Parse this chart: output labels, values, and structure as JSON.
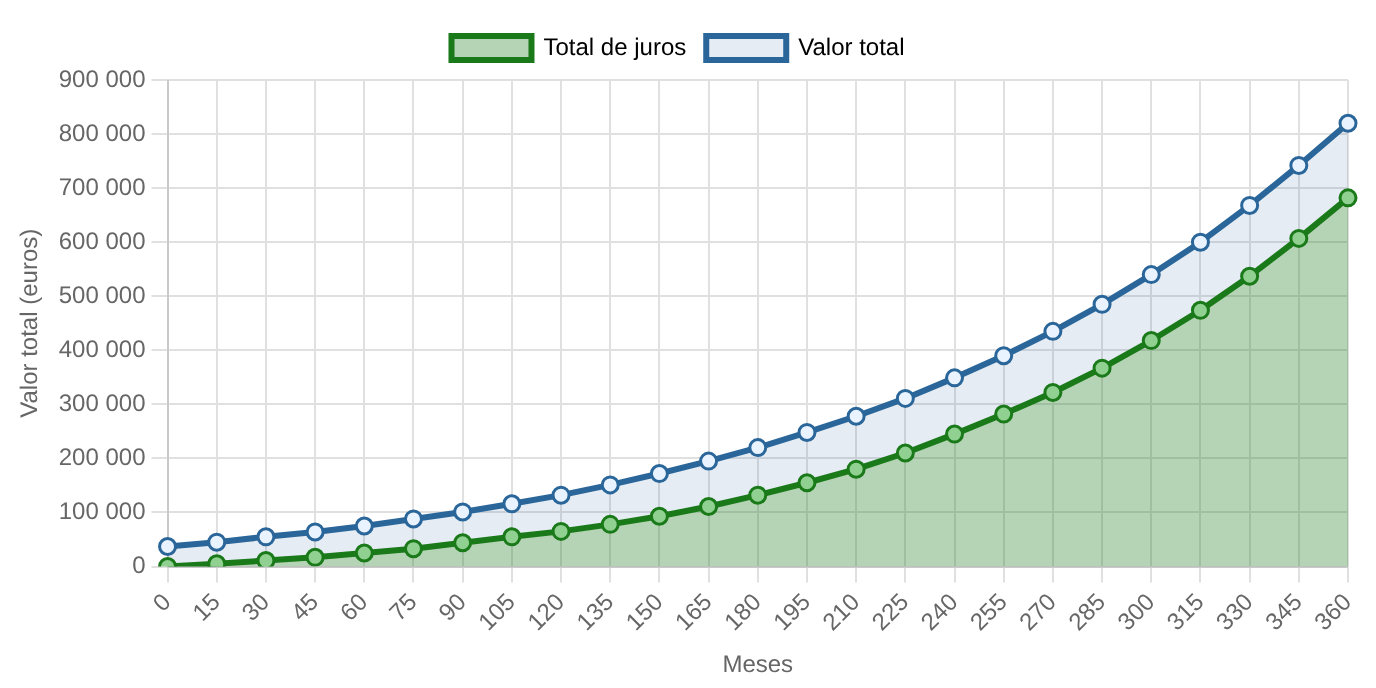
{
  "chart_data": {
    "type": "area",
    "xlabel": "Meses",
    "ylabel": "Valor total (euros)",
    "categories": [
      "0",
      "15",
      "30",
      "45",
      "60",
      "75",
      "90",
      "105",
      "120",
      "135",
      "150",
      "165",
      "180",
      "195",
      "210",
      "225",
      "240",
      "255",
      "270",
      "285",
      "300",
      "315",
      "330",
      "345",
      "360"
    ],
    "series": [
      {
        "name": "Total de juros",
        "color": "#1a7a1a",
        "values": [
          0,
          5000,
          11000,
          17000,
          25000,
          33000,
          44000,
          55000,
          65000,
          78000,
          93000,
          111000,
          132000,
          155000,
          180000,
          210000,
          245000,
          282000,
          322000,
          367000,
          418000,
          474000,
          537000,
          607000,
          682000
        ]
      },
      {
        "name": "Valor total",
        "color": "#2a6699",
        "values": [
          37000,
          45000,
          55000,
          64000,
          75000,
          88000,
          101000,
          116000,
          132000,
          151000,
          172000,
          195000,
          220000,
          248000,
          278000,
          311000,
          349000,
          390000,
          435000,
          485000,
          540000,
          600000,
          668000,
          742000,
          820000
        ]
      }
    ],
    "ylim": [
      0,
      900000
    ],
    "yticks": [
      0,
      {
        "value": 100000,
        "label": "100 000"
      },
      {
        "value": 200000,
        "label": "200 000"
      },
      {
        "value": 300000,
        "label": "300 000"
      },
      {
        "value": 400000,
        "label": "400 000"
      },
      {
        "value": 500000,
        "label": "500 000"
      },
      {
        "value": 600000,
        "label": "600 000"
      },
      {
        "value": 700000,
        "label": "700 000"
      },
      {
        "value": 800000,
        "label": "800 000"
      },
      {
        "value": 900000,
        "label": "900 000"
      }
    ],
    "grid": true,
    "legend": "top",
    "marker": "circle"
  }
}
